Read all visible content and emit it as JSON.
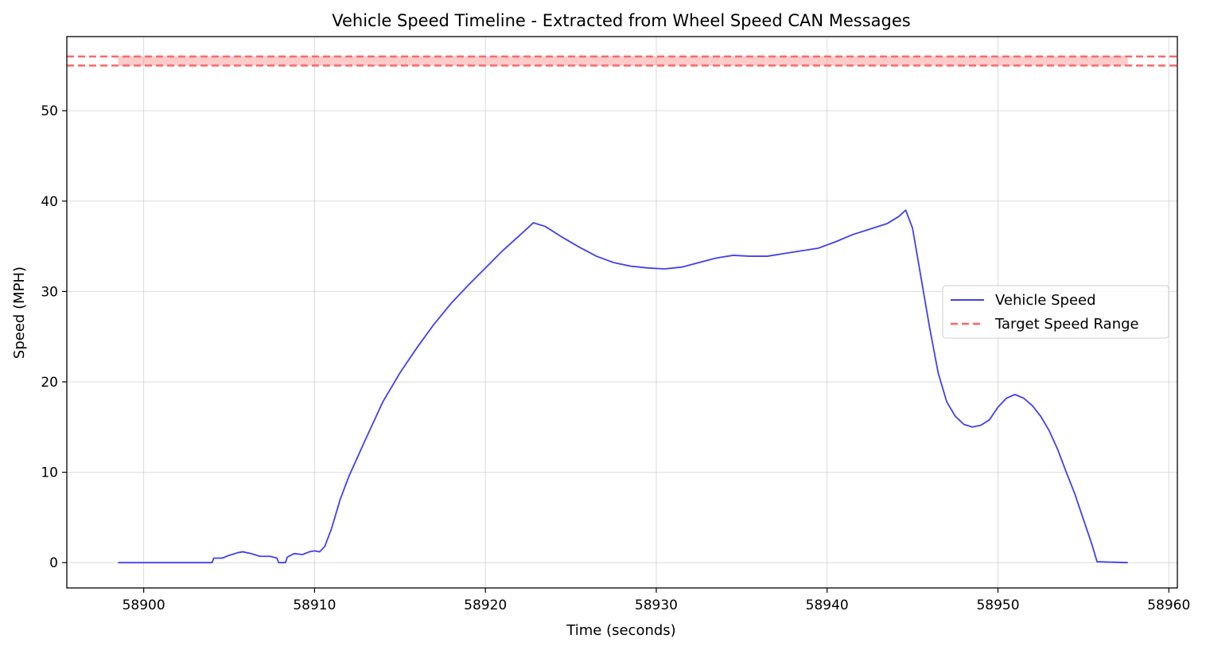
{
  "chart_data": {
    "type": "line",
    "title": "Vehicle Speed Timeline - Extracted from Wheel Speed CAN Messages",
    "xlabel": "Time (seconds)",
    "ylabel": "Speed (MPH)",
    "xlim": [
      58895.5,
      58960.5
    ],
    "ylim": [
      -2.8,
      58.2
    ],
    "x_ticks": [
      58900,
      58910,
      58920,
      58930,
      58940,
      58950,
      58960
    ],
    "y_ticks": [
      0,
      10,
      20,
      30,
      40,
      50
    ],
    "grid": true,
    "legend_position": "center-right",
    "series": [
      {
        "name": "Vehicle Speed",
        "color": "#4040ee",
        "style": "solid",
        "points": [
          [
            58898.5,
            0
          ],
          [
            58904.0,
            0
          ],
          [
            58904.1,
            0.5
          ],
          [
            58904.6,
            0.5
          ],
          [
            58905.0,
            0.8
          ],
          [
            58905.5,
            1.1
          ],
          [
            58905.8,
            1.2
          ],
          [
            58906.3,
            1.0
          ],
          [
            58906.8,
            0.7
          ],
          [
            58907.4,
            0.7
          ],
          [
            58907.8,
            0.5
          ],
          [
            58907.9,
            0.0
          ],
          [
            58908.3,
            0.0
          ],
          [
            58908.4,
            0.6
          ],
          [
            58908.8,
            1.0
          ],
          [
            58909.3,
            0.9
          ],
          [
            58909.7,
            1.2
          ],
          [
            58910.0,
            1.3
          ],
          [
            58910.3,
            1.2
          ],
          [
            58910.6,
            1.8
          ],
          [
            58911.0,
            3.8
          ],
          [
            58911.5,
            7.0
          ],
          [
            58912.0,
            9.5
          ],
          [
            58913.0,
            13.7
          ],
          [
            58914.0,
            17.8
          ],
          [
            58915.0,
            21.0
          ],
          [
            58916.0,
            23.8
          ],
          [
            58917.0,
            26.4
          ],
          [
            58918.0,
            28.7
          ],
          [
            58919.0,
            30.7
          ],
          [
            58920.0,
            32.6
          ],
          [
            58921.0,
            34.5
          ],
          [
            58922.0,
            36.2
          ],
          [
            58922.8,
            37.6
          ],
          [
            58923.5,
            37.2
          ],
          [
            58924.5,
            36.0
          ],
          [
            58925.5,
            34.9
          ],
          [
            58926.5,
            33.9
          ],
          [
            58927.5,
            33.2
          ],
          [
            58928.5,
            32.8
          ],
          [
            58929.5,
            32.6
          ],
          [
            58930.5,
            32.5
          ],
          [
            58931.5,
            32.7
          ],
          [
            58932.5,
            33.2
          ],
          [
            58933.5,
            33.7
          ],
          [
            58934.5,
            34.0
          ],
          [
            58935.5,
            33.9
          ],
          [
            58936.5,
            33.9
          ],
          [
            58937.5,
            34.2
          ],
          [
            58938.5,
            34.5
          ],
          [
            58939.5,
            34.8
          ],
          [
            58940.5,
            35.5
          ],
          [
            58941.5,
            36.3
          ],
          [
            58942.5,
            36.9
          ],
          [
            58943.5,
            37.5
          ],
          [
            58944.2,
            38.3
          ],
          [
            58944.6,
            39.0
          ],
          [
            58945.0,
            37.0
          ],
          [
            58945.5,
            31.5
          ],
          [
            58946.0,
            26.0
          ],
          [
            58946.5,
            21.0
          ],
          [
            58947.0,
            17.8
          ],
          [
            58947.5,
            16.2
          ],
          [
            58948.0,
            15.3
          ],
          [
            58948.5,
            15.0
          ],
          [
            58949.0,
            15.2
          ],
          [
            58949.5,
            15.8
          ],
          [
            58950.0,
            17.2
          ],
          [
            58950.5,
            18.2
          ],
          [
            58951.0,
            18.6
          ],
          [
            58951.5,
            18.2
          ],
          [
            58952.0,
            17.4
          ],
          [
            58952.5,
            16.2
          ],
          [
            58953.0,
            14.6
          ],
          [
            58953.5,
            12.5
          ],
          [
            58954.0,
            10.0
          ],
          [
            58954.5,
            7.6
          ],
          [
            58955.0,
            4.8
          ],
          [
            58955.5,
            2.0
          ],
          [
            58955.8,
            0.1
          ],
          [
            58957.6,
            0
          ]
        ]
      },
      {
        "name": "Target Speed Range",
        "color": "#ff6666",
        "style": "dashed",
        "hlines": [
          55,
          56
        ],
        "band": {
          "x_start": 58898.5,
          "x_end": 58957.6,
          "y_start": 55,
          "y_end": 56
        }
      }
    ]
  }
}
